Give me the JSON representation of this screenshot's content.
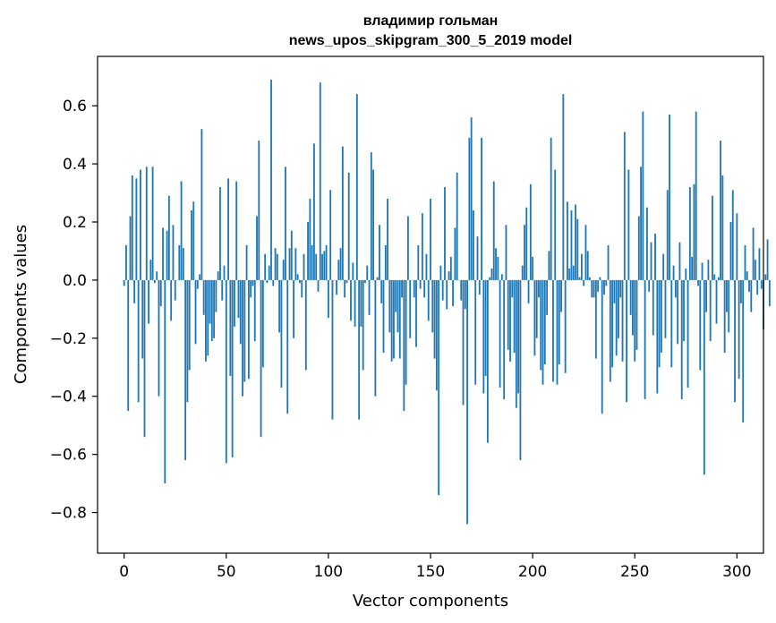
{
  "chart_data": {
    "type": "bar",
    "title_lines": [
      "владимир гольман",
      "news_upos_skipgram_300_5_2019 model"
    ],
    "xlabel": "Vector components",
    "ylabel": "Components values",
    "xlim": [
      -13,
      313
    ],
    "ylim": [
      -0.94,
      0.77
    ],
    "xticks": [
      0,
      50,
      100,
      150,
      200,
      250,
      300
    ],
    "yticks": [
      -0.8,
      -0.6,
      -0.4,
      -0.2,
      0.0,
      0.2,
      0.4,
      0.6
    ],
    "ytick_labels": [
      "−0.8",
      "−0.6",
      "−0.4",
      "−0.2",
      "0.0",
      "0.2",
      "0.4",
      "0.6"
    ],
    "grid": false,
    "bar_color": "#1f77b4",
    "values": [
      -0.02,
      0.12,
      -0.45,
      0.22,
      0.36,
      -0.08,
      0.35,
      -0.42,
      0.38,
      -0.27,
      -0.54,
      0.39,
      -0.15,
      0.07,
      0.39,
      -0.01,
      0.03,
      -0.4,
      -0.09,
      0.18,
      -0.7,
      0.17,
      0.29,
      -0.14,
      0.19,
      -0.07,
      0.0,
      0.12,
      0.34,
      0.11,
      -0.62,
      -0.42,
      -0.31,
      0.24,
      0.27,
      -0.22,
      -0.03,
      0.02,
      0.52,
      -0.12,
      -0.28,
      -0.26,
      -0.15,
      -0.21,
      -0.2,
      -0.11,
      0.03,
      0.32,
      -0.07,
      0.05,
      -0.63,
      0.35,
      -0.33,
      -0.61,
      -0.16,
      0.34,
      -0.13,
      -0.22,
      -0.4,
      -0.35,
      0.12,
      -0.34,
      -0.06,
      -0.02,
      -0.21,
      0.22,
      0.48,
      -0.54,
      -0.3,
      0.09,
      -0.01,
      0.05,
      0.69,
      -0.02,
      0.11,
      0.09,
      -0.18,
      -0.37,
      0.07,
      0.39,
      -0.46,
      0.11,
      0.17,
      -0.2,
      0.11,
      0.02,
      -0.01,
      -0.06,
      0.09,
      -0.31,
      0.2,
      0.28,
      0.12,
      0.47,
      0.09,
      -0.04,
      0.68,
      0.09,
      0.1,
      0.12,
      -0.13,
      0.31,
      -0.48,
      0.0,
      -0.05,
      0.07,
      0.11,
      0.46,
      -0.06,
      -0.01,
      0.37,
      -0.14,
      0.06,
      -0.16,
      0.64,
      -0.48,
      -0.16,
      -0.31,
      -0.01,
      0.05,
      -0.12,
      0.44,
      0.38,
      -0.4,
      0.01,
      0.19,
      -0.08,
      -0.25,
      0.12,
      0.28,
      -0.18,
      -0.28,
      -0.27,
      -0.11,
      -0.18,
      -0.27,
      -0.06,
      -0.45,
      -0.36,
      0.22,
      -0.2,
      0.0,
      -0.06,
      -0.23,
      0.12,
      -0.03,
      0.23,
      -0.06,
      0.09,
      -0.14,
      0.28,
      -0.18,
      -0.27,
      -0.38,
      -0.74,
      0.05,
      -0.07,
      0.32,
      -0.1,
      0.03,
      0.08,
      -0.09,
      0.18,
      0.37,
      0.0,
      -0.07,
      -0.43,
      -0.1,
      -0.84,
      0.49,
      0.56,
      0.24,
      -0.36,
      0.15,
      -0.05,
      0.49,
      -0.39,
      -0.33,
      -0.56,
      0.01,
      0.04,
      0.34,
      0.11,
      0.08,
      -0.37,
      0.02,
      -0.41,
      0.19,
      -0.24,
      -0.28,
      -0.06,
      -0.25,
      -0.44,
      -0.39,
      -0.62,
      0.05,
      0.19,
      0.25,
      -0.08,
      0.33,
      0.08,
      -0.26,
      -0.2,
      -0.06,
      -0.31,
      -0.36,
      -0.29,
      -0.12,
      0.1,
      0.49,
      -0.35,
      0.38,
      -0.36,
      -0.29,
      -0.11,
      0.64,
      -0.32,
      0.27,
      0.04,
      0.24,
      0.05,
      0.26,
      0.21,
      0.01,
      0.09,
      -0.02,
      0.19,
      0.1,
      0.01,
      -0.06,
      -0.06,
      -0.27,
      -0.04,
      0.01,
      -0.46,
      -0.05,
      -0.02,
      0.12,
      -0.35,
      -0.3,
      -0.08,
      -0.26,
      -0.2,
      -0.06,
      -0.28,
      0.51,
      -0.42,
      0.38,
      -0.12,
      -0.19,
      -0.28,
      -0.24,
      0.22,
      0.39,
      0.58,
      -0.41,
      0.25,
      -0.04,
      0.13,
      -0.19,
      0.16,
      -0.39,
      -0.3,
      -0.25,
      0.09,
      -0.2,
      0.31,
      0.57,
      -0.3,
      0.05,
      -0.06,
      -0.22,
      0.13,
      -0.41,
      -0.21,
      0.04,
      -0.37,
      0.32,
      0.08,
      0.33,
      0.58,
      -0.02,
      -0.31,
      0.06,
      -0.67,
      -0.11,
      0.07,
      -0.21,
      0.29,
      0.02,
      -0.15,
      0.01,
      0.48,
      0.36,
      -0.25,
      -0.11,
      -0.18,
      0.2,
      0.31,
      -0.42,
      0.23,
      -0.34,
      -0.08,
      -0.49,
      0.12,
      0.03,
      -0.04,
      -0.11,
      0.18,
      0.07,
      -0.05,
      0.11,
      -0.03,
      -0.17,
      0.02,
      0.14,
      -0.09
    ]
  }
}
